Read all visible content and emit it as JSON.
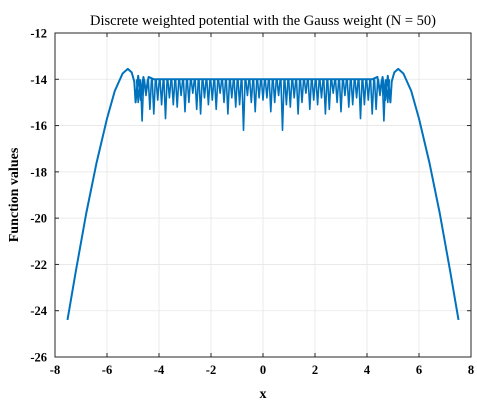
{
  "chart_data": {
    "type": "line",
    "title": "Discrete weighted potential with the Gauss weight (N = 50)",
    "xlabel": "x",
    "ylabel": "Function values",
    "xlim": [
      -8,
      8
    ],
    "ylim": [
      -26,
      -12
    ],
    "xticks": [
      -8,
      -6,
      -4,
      -2,
      0,
      2,
      4,
      6,
      8
    ],
    "yticks": [
      -26,
      -24,
      -22,
      -20,
      -18,
      -16,
      -14,
      -12
    ],
    "grid": true,
    "line_color": "#0072BD",
    "series": [
      {
        "x": [
          -7.52,
          -7.2,
          -6.8,
          -6.4,
          -6.0,
          -5.7,
          -5.4,
          -5.2,
          -5.05,
          -4.95,
          -4.9,
          -4.8,
          -4.7,
          -4.6,
          -4.5,
          -4.4,
          -4.2,
          -4.0,
          -3.6,
          -3.0,
          -2.5,
          -2.0,
          -1.5,
          -1.0,
          -0.5,
          0.0,
          0.5,
          1.0,
          1.5,
          2.0,
          2.5,
          3.0,
          3.6,
          4.0,
          4.2,
          4.4,
          4.5,
          4.6,
          4.7,
          4.8,
          4.9,
          4.95,
          5.05,
          5.2,
          5.4,
          5.7,
          6.0,
          6.4,
          6.8,
          7.2,
          7.52
        ],
        "y": [
          -24.4,
          -22.3,
          -19.8,
          -17.6,
          -15.7,
          -14.5,
          -13.75,
          -13.55,
          -13.7,
          -14.1,
          -15.0,
          -13.85,
          -14.9,
          -13.9,
          -14.6,
          -13.9,
          -14.0,
          -14.0,
          -14.0,
          -14.0,
          -14.0,
          -14.0,
          -14.0,
          -14.0,
          -14.0,
          -14.0,
          -14.0,
          -14.0,
          -14.0,
          -14.0,
          -14.0,
          -14.0,
          -14.0,
          -14.0,
          -14.0,
          -13.9,
          -14.6,
          -13.9,
          -14.9,
          -13.85,
          -15.0,
          -14.1,
          -13.7,
          -13.55,
          -13.75,
          -14.5,
          -15.7,
          -17.6,
          -19.8,
          -22.3,
          -24.4
        ]
      }
    ],
    "oscillation_dips": {
      "x": [
        -4.8,
        -4.65,
        -4.5,
        -4.35,
        -4.2,
        -4.05,
        -3.9,
        -3.75,
        -3.6,
        -3.45,
        -3.3,
        -3.15,
        -3.0,
        -2.85,
        -2.7,
        -2.55,
        -2.4,
        -2.25,
        -2.1,
        -1.95,
        -1.8,
        -1.65,
        -1.5,
        -1.35,
        -1.2,
        -1.05,
        -0.9,
        -0.75,
        -0.6,
        -0.45,
        -0.3,
        -0.15,
        0.0,
        0.15,
        0.3,
        0.45,
        0.6,
        0.75,
        0.9,
        1.05,
        1.2,
        1.35,
        1.5,
        1.65,
        1.8,
        1.95,
        2.1,
        2.25,
        2.4,
        2.55,
        2.7,
        2.85,
        3.0,
        3.15,
        3.3,
        3.45,
        3.6,
        3.75,
        3.9,
        4.05,
        4.2,
        4.35,
        4.5,
        4.65,
        4.8
      ],
      "y": [
        -15.0,
        -15.8,
        -14.7,
        -15.3,
        -15.5,
        -14.9,
        -15.1,
        -15.7,
        -14.8,
        -15.1,
        -15.2,
        -14.7,
        -15.4,
        -15.0,
        -14.6,
        -15.3,
        -15.5,
        -14.8,
        -15.1,
        -14.9,
        -15.3,
        -14.6,
        -15.0,
        -15.5,
        -14.8,
        -15.2,
        -15.1,
        -16.2,
        -14.7,
        -15.0,
        -15.4,
        -14.8,
        -14.9,
        -14.8,
        -15.4,
        -15.0,
        -14.7,
        -16.2,
        -15.1,
        -15.2,
        -14.8,
        -15.5,
        -15.0,
        -14.6,
        -15.3,
        -14.9,
        -15.1,
        -14.8,
        -15.5,
        -15.3,
        -14.6,
        -15.0,
        -15.4,
        -14.7,
        -15.2,
        -15.1,
        -14.8,
        -15.7,
        -15.1,
        -14.9,
        -15.5,
        -15.3,
        -14.7,
        -15.8,
        -15.0
      ]
    }
  }
}
